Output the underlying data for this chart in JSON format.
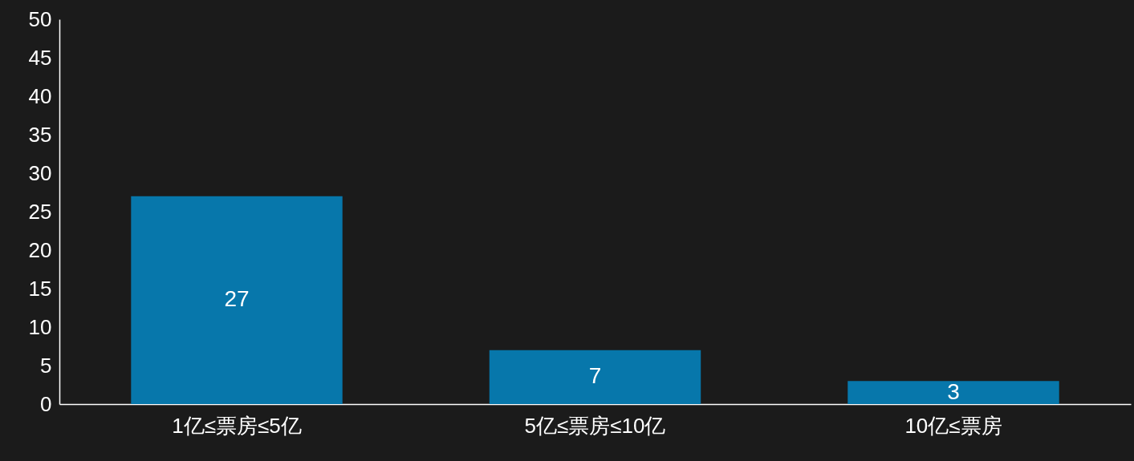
{
  "chart_data": {
    "type": "bar",
    "categories": [
      "1亿≤票房≤5亿",
      "5亿≤票房≤10亿",
      "10亿≤票房"
    ],
    "values": [
      27,
      7,
      3
    ],
    "color": "#0777ab",
    "ylim": [
      0,
      50
    ],
    "yticks": [
      0,
      5,
      10,
      15,
      20,
      25,
      30,
      35,
      40,
      45,
      50
    ],
    "data_labels": true,
    "grid": false
  }
}
